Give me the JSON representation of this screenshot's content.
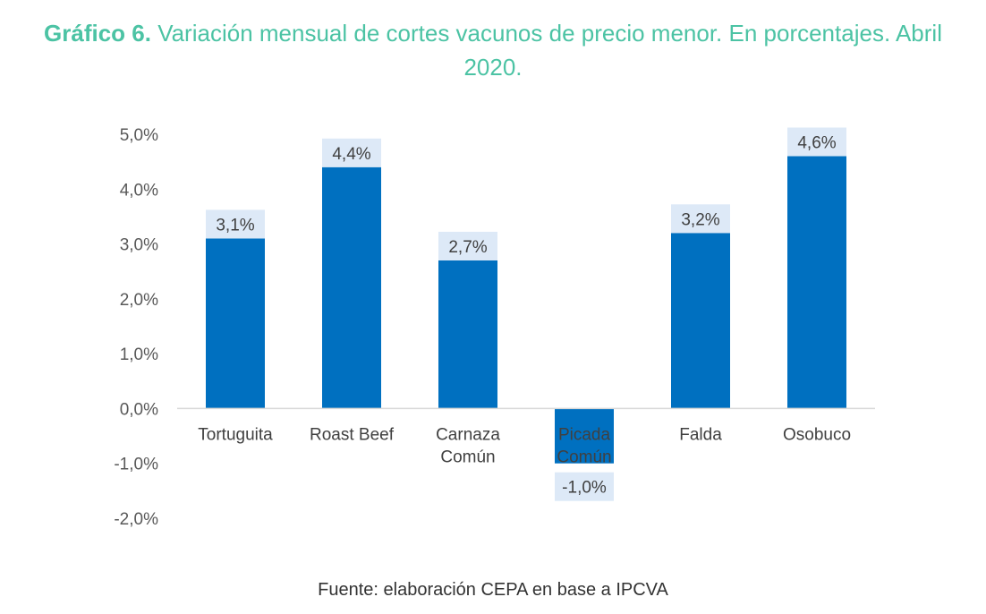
{
  "title": {
    "prefix": "Gráfico 6.",
    "text": "Variación mensual de cortes vacunos de precio menor. En porcentajes. Abril 2020."
  },
  "source": "Fuente: elaboración CEPA en base a IPCVA",
  "colors": {
    "bar": "#0070c0",
    "label_bg": "#dde9f7",
    "title": "#4cc3a4"
  },
  "chart_data": {
    "type": "bar",
    "categories": [
      [
        "Tortuguita"
      ],
      [
        "Roast Beef"
      ],
      [
        "Carnaza",
        "Común"
      ],
      [
        "Picada",
        "Común"
      ],
      [
        "Falda"
      ],
      [
        "Osobuco"
      ]
    ],
    "values": [
      3.1,
      4.4,
      2.7,
      -1.0,
      3.2,
      4.6
    ],
    "data_labels": [
      "3,1%",
      "4,4%",
      "2,7%",
      "-1,0%",
      "3,2%",
      "4,6%"
    ],
    "yticks": [
      5.0,
      4.0,
      3.0,
      2.0,
      1.0,
      0.0,
      -1.0,
      -2.0
    ],
    "ytick_labels": [
      "5,0%",
      "4,0%",
      "3,0%",
      "2,0%",
      "1,0%",
      "0,0%",
      "-1,0%",
      "-2,0%"
    ],
    "ylim": [
      -2.0,
      5.0
    ],
    "grid": false,
    "legend": "none"
  }
}
